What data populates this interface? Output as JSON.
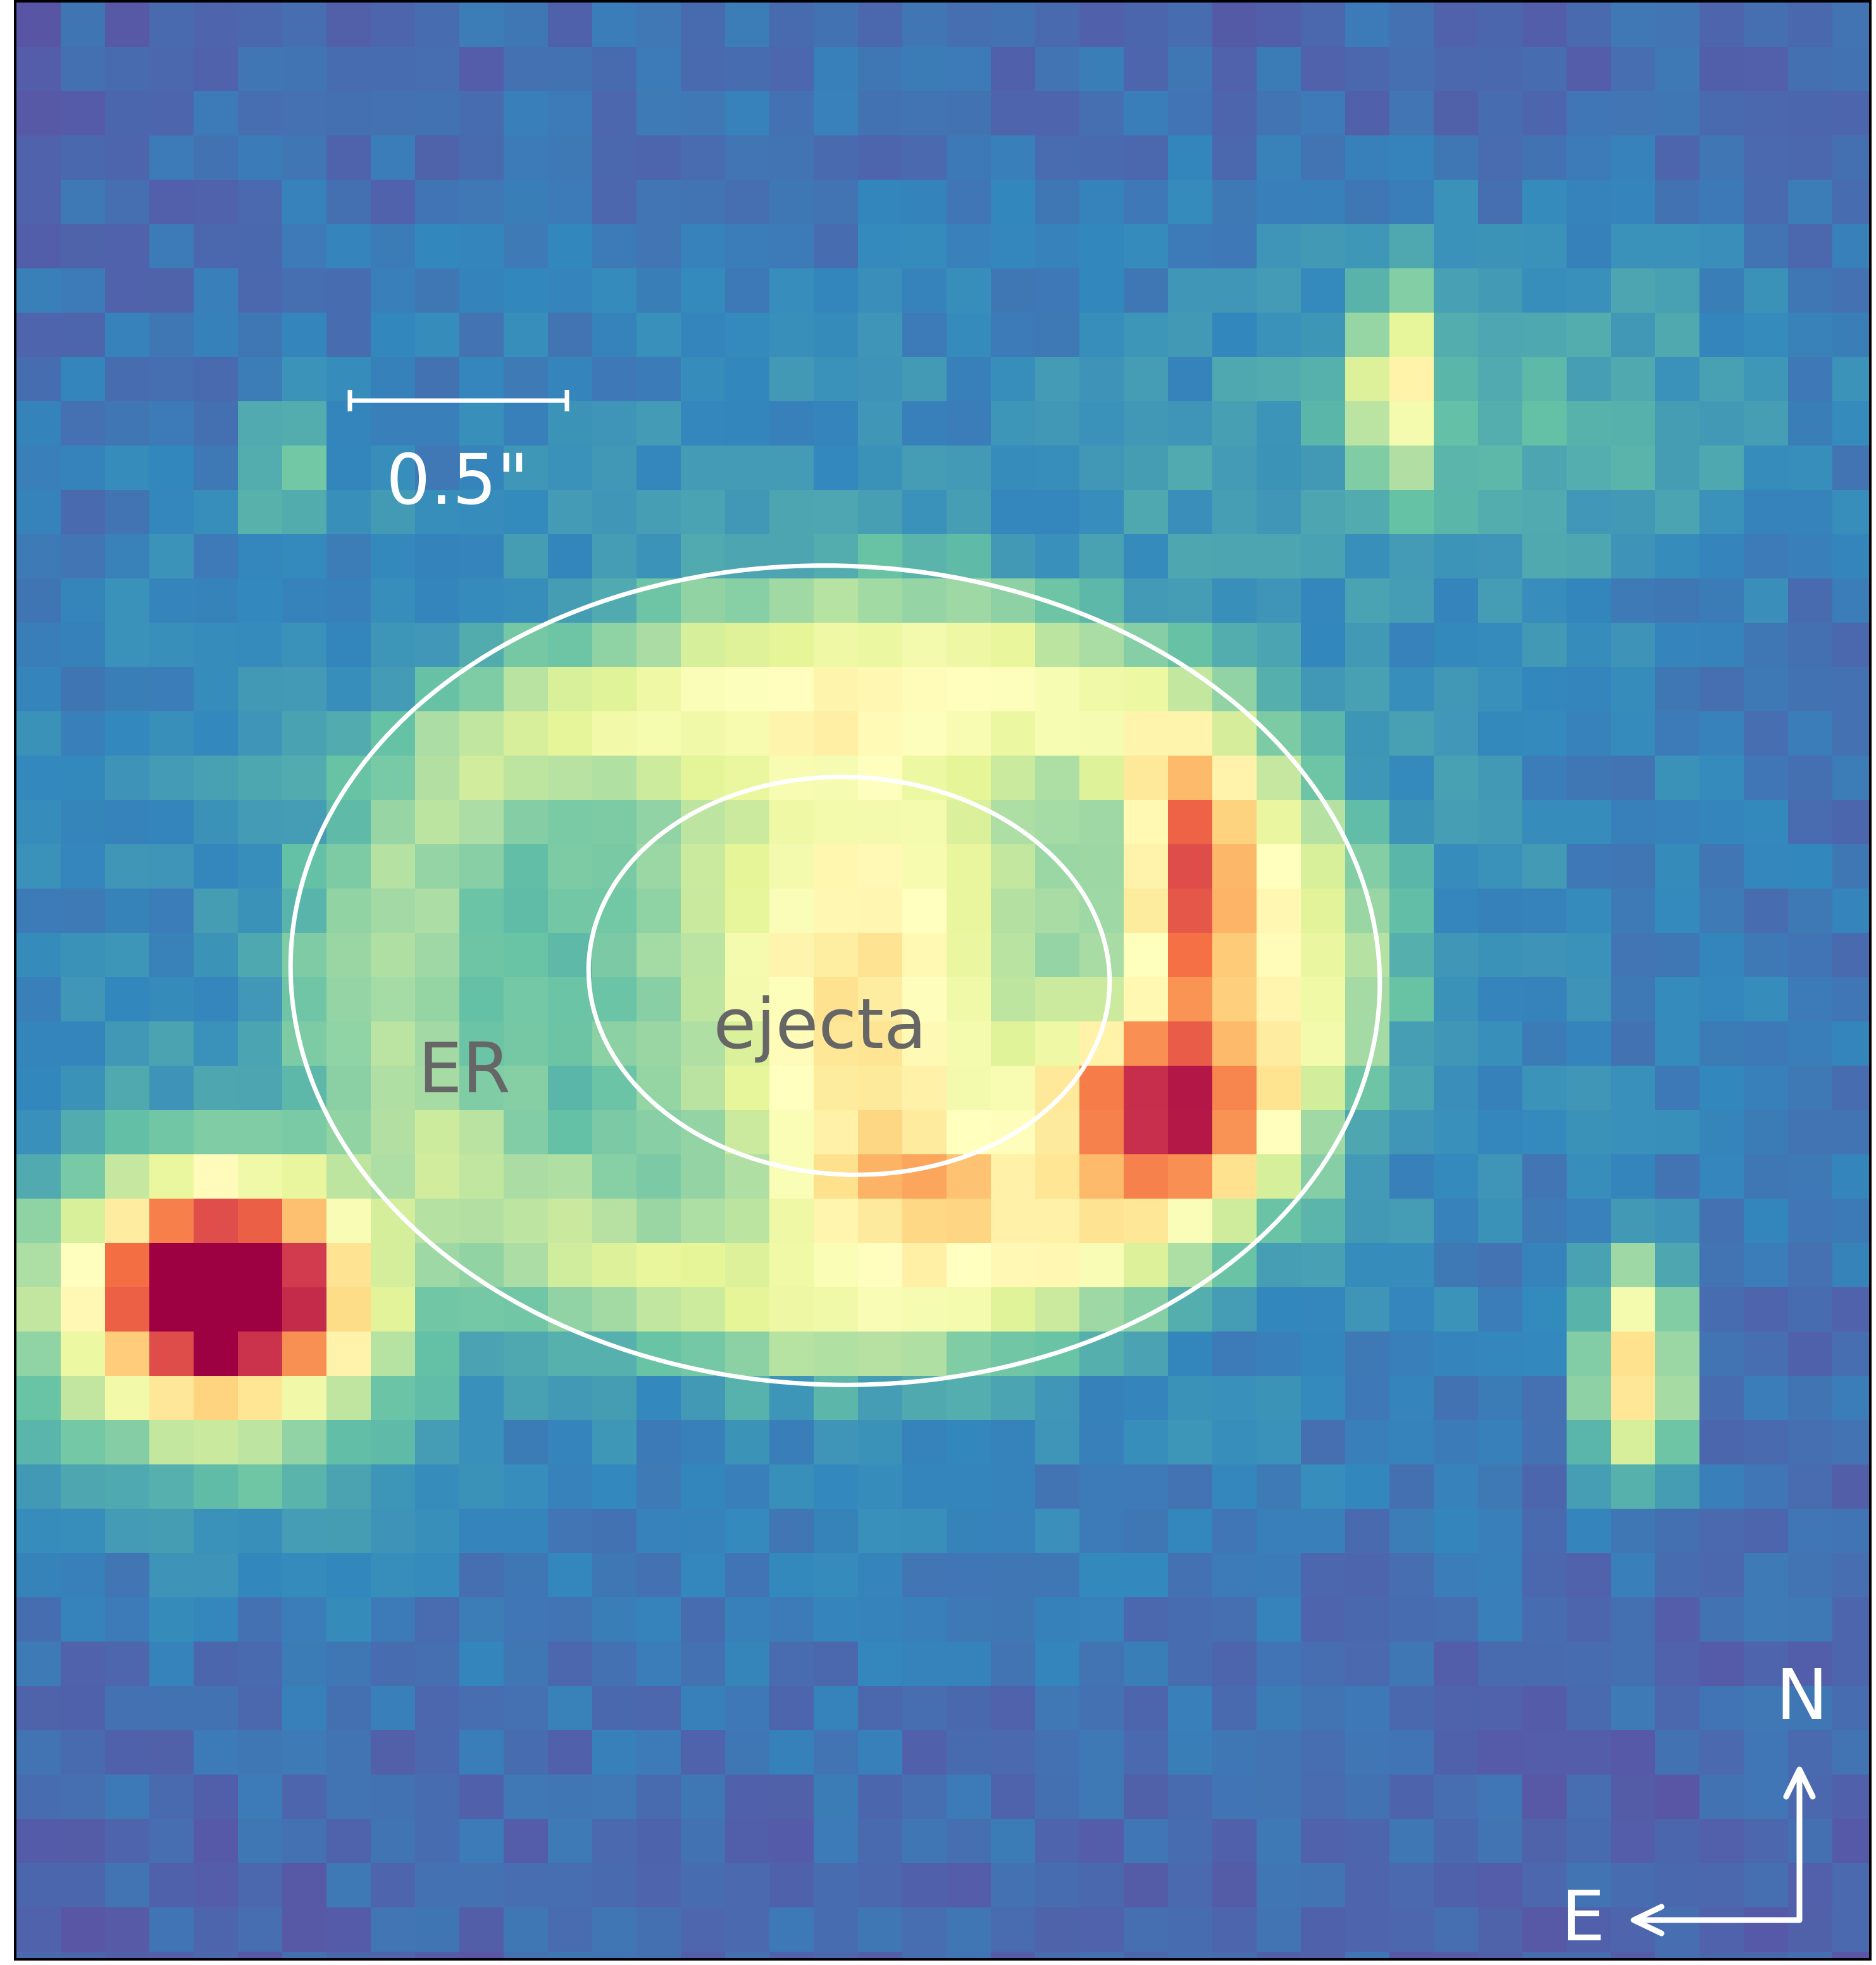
{
  "figure": {
    "scale_bar_label": "0.5\"",
    "region_labels": {
      "outer": "ER",
      "inner": "ejecta"
    },
    "compass": {
      "north": "N",
      "east": "E"
    },
    "colormap": "Spectral_r",
    "colors": {
      "background": "#5e4fa2",
      "overlay": "#ffffff",
      "region_label": "#666666",
      "saturated": "#9e0142"
    }
  }
}
